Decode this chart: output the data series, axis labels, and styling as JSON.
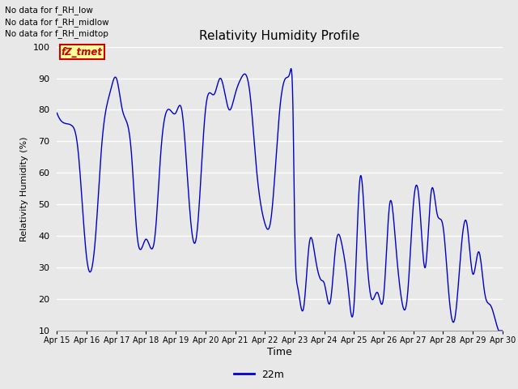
{
  "title": "Relativity Humidity Profile",
  "xlabel": "Time",
  "ylabel": "Relativity Humidity (%)",
  "line_color": "#0000CC",
  "line_label": "22m",
  "bg_color": "#E8E8E8",
  "ylim": [
    10,
    100
  ],
  "yticks": [
    10,
    20,
    30,
    40,
    50,
    60,
    70,
    80,
    90,
    100
  ],
  "no_data_texts": [
    "No data for f_RH_low",
    "No data for f_RH_midlow",
    "No data for f_RH_midtop"
  ],
  "legend_label_box_text": "fZ_tmet",
  "x_tick_labels": [
    "Apr 15",
    "Apr 16",
    "Apr 17",
    "Apr 18",
    "Apr 19",
    "Apr 20",
    "Apr 21",
    "Apr 22",
    "Apr 23",
    "Apr 24",
    "Apr 25",
    "Apr 26",
    "Apr 27",
    "Apr 28",
    "Apr 29",
    "Apr 30"
  ],
  "figsize": [
    6.4,
    4.8
  ],
  "dpi": 100
}
